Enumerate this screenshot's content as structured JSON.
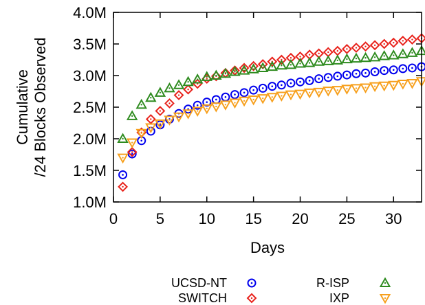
{
  "chart_data": {
    "type": "scatter",
    "xlabel": "Days",
    "ylabel_lines": [
      "Cumulative",
      "/24 Blocks Observed"
    ],
    "xlim": [
      0,
      33
    ],
    "ylim": [
      1.0,
      4.0
    ],
    "x_ticks": [
      0,
      5,
      10,
      15,
      20,
      25,
      30
    ],
    "x_tick_labels": [
      "0",
      "5",
      "10",
      "15",
      "20",
      "25",
      "30"
    ],
    "y_ticks": [
      1.0,
      1.5,
      2.0,
      2.5,
      3.0,
      3.5,
      4.0
    ],
    "y_tick_labels": [
      "1.0M",
      "1.5M",
      "2.0M",
      "2.5M",
      "3.0M",
      "3.5M",
      "4.0M"
    ],
    "y_unit": "millions of /24 blocks",
    "x": [
      1,
      2,
      3,
      4,
      5,
      6,
      7,
      8,
      9,
      10,
      11,
      12,
      13,
      14,
      15,
      16,
      17,
      18,
      19,
      20,
      21,
      22,
      23,
      24,
      25,
      26,
      27,
      28,
      29,
      30,
      31,
      32,
      33
    ],
    "series": [
      {
        "name": "UCSD-NT",
        "marker": "circle",
        "color": "#0000ee",
        "values": [
          1.43,
          1.76,
          1.97,
          2.12,
          2.22,
          2.31,
          2.4,
          2.47,
          2.53,
          2.58,
          2.62,
          2.66,
          2.7,
          2.73,
          2.77,
          2.8,
          2.83,
          2.85,
          2.88,
          2.9,
          2.92,
          2.95,
          2.97,
          2.99,
          3.01,
          3.03,
          3.04,
          3.06,
          3.08,
          3.09,
          3.11,
          3.12,
          3.14
        ]
      },
      {
        "name": "SWITCH",
        "marker": "diamond",
        "color": "#e8221b",
        "values": [
          1.24,
          1.79,
          2.1,
          2.31,
          2.44,
          2.56,
          2.69,
          2.78,
          2.87,
          2.95,
          2.99,
          3.04,
          3.08,
          3.12,
          3.15,
          3.18,
          3.22,
          3.25,
          3.28,
          3.3,
          3.33,
          3.35,
          3.37,
          3.39,
          3.42,
          3.44,
          3.46,
          3.48,
          3.5,
          3.52,
          3.55,
          3.57,
          3.59
        ]
      },
      {
        "name": "R-ISP",
        "marker": "triangle-up",
        "color": "#2e8b1f",
        "values": [
          2.0,
          2.36,
          2.54,
          2.65,
          2.73,
          2.8,
          2.85,
          2.9,
          2.94,
          2.98,
          3.0,
          3.03,
          3.06,
          3.08,
          3.1,
          3.12,
          3.14,
          3.16,
          3.17,
          3.19,
          3.2,
          3.22,
          3.23,
          3.24,
          3.26,
          3.27,
          3.28,
          3.29,
          3.31,
          3.32,
          3.34,
          3.36,
          3.39
        ]
      },
      {
        "name": "IXP",
        "marker": "triangle-down",
        "color": "#f7a01d",
        "values": [
          1.7,
          1.94,
          2.09,
          2.18,
          2.24,
          2.3,
          2.35,
          2.4,
          2.44,
          2.48,
          2.51,
          2.54,
          2.57,
          2.6,
          2.62,
          2.64,
          2.66,
          2.68,
          2.7,
          2.71,
          2.73,
          2.74,
          2.76,
          2.77,
          2.79,
          2.8,
          2.81,
          2.83,
          2.84,
          2.85,
          2.87,
          2.88,
          2.91
        ]
      }
    ]
  }
}
